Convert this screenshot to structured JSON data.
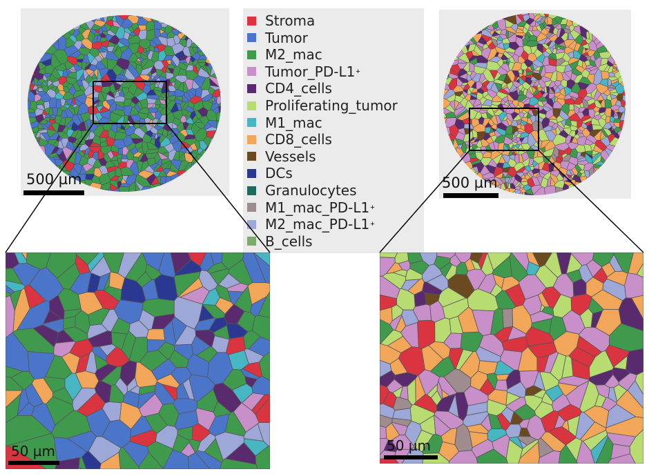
{
  "legend": {
    "items": [
      {
        "label": "Stroma",
        "sup": "",
        "color": "#d9343f"
      },
      {
        "label": "Tumor",
        "sup": "",
        "color": "#4a75c8"
      },
      {
        "label": "M2_mac",
        "sup": "",
        "color": "#3f9a4e"
      },
      {
        "label": "Tumor_PD-L1",
        "sup": "+",
        "color": "#c88fc9"
      },
      {
        "label": "CD4_cells",
        "sup": "",
        "color": "#5a2a6f"
      },
      {
        "label": "Proliferating_tumor",
        "sup": "",
        "color": "#b8dc72"
      },
      {
        "label": "M1_mac",
        "sup": "",
        "color": "#47b5c2"
      },
      {
        "label": "CD8_cells",
        "sup": "",
        "color": "#f2a65a"
      },
      {
        "label": "Vessels",
        "sup": "",
        "color": "#6b4a1f"
      },
      {
        "label": "DCs",
        "sup": "",
        "color": "#2b3891"
      },
      {
        "label": "Granulocytes",
        "sup": "",
        "color": "#1f6a5e"
      },
      {
        "label": "M1_mac_PD-L1",
        "sup": "+",
        "color": "#9e8c8f"
      },
      {
        "label": "M2_mac_PD-L1",
        "sup": "+",
        "color": "#9da7d8"
      },
      {
        "label": "B_cells",
        "sup": "",
        "color": "#7dab6f"
      }
    ]
  },
  "overview_left": {
    "scale_label": "500 µm"
  },
  "overview_right": {
    "scale_label": "500 µm"
  },
  "zoom_left": {
    "scale_label": "50 µm"
  },
  "zoom_right": {
    "scale_label": "50 µm"
  }
}
